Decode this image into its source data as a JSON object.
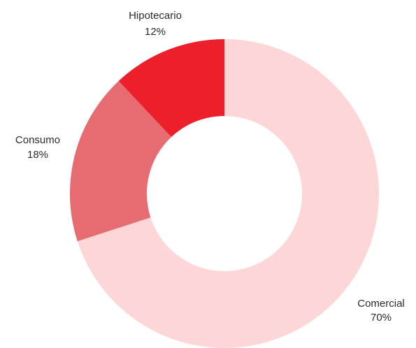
{
  "chart_data": {
    "type": "pie",
    "variant": "donut",
    "title": "",
    "slices": [
      {
        "label": "Comercial",
        "value": 70,
        "value_label": "70%",
        "color": "#fdd7d8"
      },
      {
        "label": "Consumo",
        "value": 18,
        "value_label": "18%",
        "color": "#e66c71"
      },
      {
        "label": "Hipotecario",
        "value": 12,
        "value_label": "12%",
        "color": "#ec1f2b"
      }
    ],
    "legend": "none",
    "labels_outside": true
  }
}
